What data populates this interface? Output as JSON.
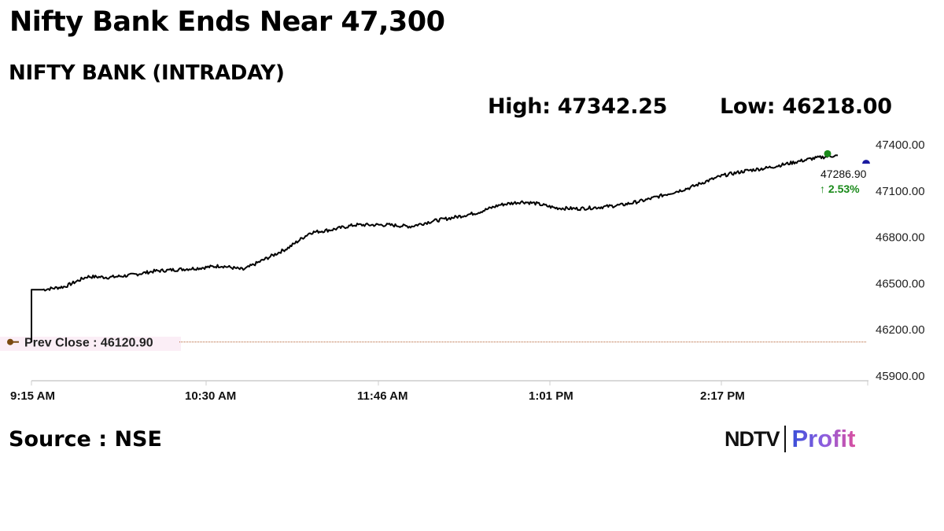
{
  "header": {
    "headline": "Nifty Bank Ends Near 47,300",
    "subtitle": "NIFTY BANK (INTRADAY)",
    "high_label": "High: 47342.25",
    "low_label": "Low: 46218.00"
  },
  "footer": {
    "source": "Source : NSE",
    "logo_left": "NDTV",
    "logo_right": "Profit"
  },
  "annotations": {
    "prev_close_label": "Prev Close : 46120.90",
    "last_value": "47286.90",
    "change": "↑ 2.53%"
  },
  "colors": {
    "line": "#000000",
    "prev_close_line": "#b05a2a",
    "prev_close_marker": "#7a4a10",
    "high_marker": "#1a8a1a",
    "last_marker": "#1a1aa0",
    "change_text": "#1a8a1a",
    "grid_axis": "#d9d9d9"
  },
  "chart_data": {
    "type": "line",
    "title": "NIFTY BANK (INTRADAY)",
    "xlabel": "",
    "ylabel": "",
    "x_tick_labels": [
      "9:15 AM",
      "10:30 AM",
      "11:46 AM",
      "1:01 PM",
      "2:17 PM"
    ],
    "y_tick_labels": [
      "47400.00",
      "47100.00",
      "46800.00",
      "46500.00",
      "46200.00",
      "45900.00"
    ],
    "ylim": [
      45900,
      47400
    ],
    "grid": false,
    "legend": null,
    "high": 47342.25,
    "low": 46218.0,
    "prev_close": 46120.9,
    "last": 47286.9,
    "change_pct": 2.53,
    "series": [
      {
        "name": "NIFTY BANK",
        "x": [
          "9:15",
          "9:20",
          "9:30",
          "9:40",
          "9:50",
          "10:00",
          "10:10",
          "10:20",
          "10:30",
          "10:40",
          "10:50",
          "11:00",
          "11:10",
          "11:20",
          "11:30",
          "11:40",
          "11:46",
          "11:55",
          "12:05",
          "12:15",
          "12:25",
          "12:35",
          "12:45",
          "12:55",
          "13:01",
          "13:10",
          "13:20",
          "13:30",
          "13:40",
          "13:50",
          "14:00",
          "14:10",
          "14:17",
          "14:25",
          "14:35",
          "14:45",
          "14:55",
          "15:05",
          "15:15",
          "15:25",
          "15:29"
        ],
        "values": [
          46120.9,
          46460,
          46480,
          46545,
          46540,
          46555,
          46580,
          46590,
          46600,
          46615,
          46590,
          46660,
          46730,
          46830,
          46850,
          46880,
          46880,
          46880,
          46870,
          46905,
          46930,
          46960,
          47010,
          47030,
          47020,
          46990,
          46985,
          46995,
          47010,
          47040,
          47080,
          47120,
          47160,
          47200,
          47230,
          47250,
          47280,
          47310,
          47330,
          47300,
          47286.9
        ]
      }
    ]
  }
}
